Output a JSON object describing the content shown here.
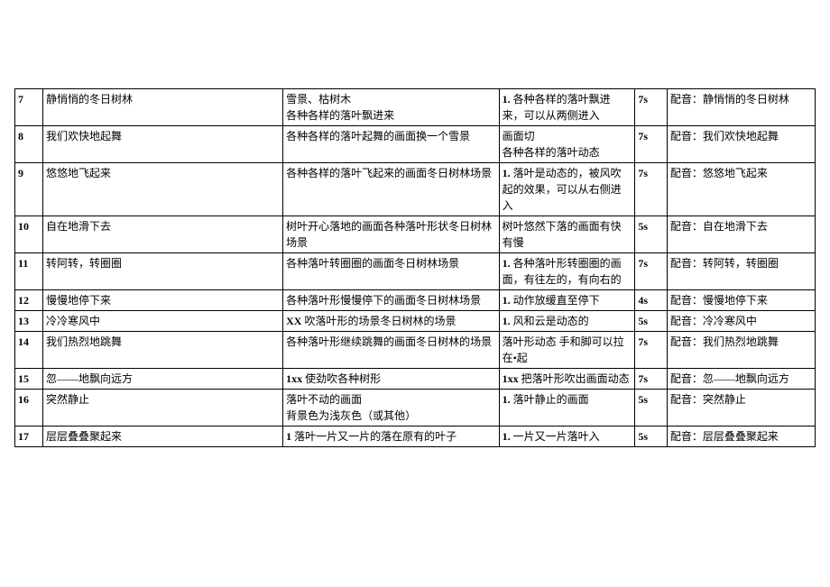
{
  "rows": [
    {
      "num": "7",
      "text": "静悄悄的冬日树林",
      "scene": "雪景、枯树木\n各种各样的落叶飘进来",
      "action_prefix": "1.",
      "action": " 各种各样的落叶飘进来，可以从两侧进入",
      "time": "7s",
      "audio": "配音：静悄悄的冬日树林"
    },
    {
      "num": "8",
      "text": "我们欢快地起舞",
      "scene": "各种各样的落叶起舞的画面换一个雪景",
      "action_prefix": "",
      "action": "画面切\n各种各样的落叶动态",
      "time": "7s",
      "audio": "配音：我们欢快地起舞"
    },
    {
      "num": "9",
      "text": "悠悠地飞起来",
      "scene": "各种各样的落叶飞起来的画面冬日树林场景",
      "action_prefix": "1.",
      "action": " 落叶是动态的，被风吹起的效果，可以从右侧进入",
      "time": "7s",
      "audio": "配音：悠悠地飞起来"
    },
    {
      "num": "10",
      "text": "自在地滑下去",
      "scene": "树叶开心落地的画面各种落叶形状冬日树林场景",
      "action_prefix": "",
      "action": "树叶悠然下落的画面有快有慢",
      "time": "5s",
      "audio": "配音：自在地滑下去"
    },
    {
      "num": "11",
      "text": "转阿转，转圈圈",
      "scene": "各种落叶转圈圈的画面冬日树林场景",
      "action_prefix": "1.",
      "action": " 各种落叶形转圈圈的画面，有往左的，有向右的",
      "time": "7s",
      "audio": "配音：转阿转，转圈圈"
    },
    {
      "num": "12",
      "text": "慢慢地停下来",
      "scene": "各种落叶形慢慢停下的画面冬日树林场景",
      "action_prefix": "1.",
      "action": " 动作放缓直至停下",
      "time": "4s",
      "audio": "配音：慢慢地停下来"
    },
    {
      "num": "13",
      "text": "冷冷寒风中",
      "scene_prefix": "XX",
      "scene": " 吹落叶形的场景冬日树林的场景",
      "action_prefix": "1.",
      "action": " 风和云是动态的",
      "time": "5s",
      "audio": "配音：冷冷寒风中"
    },
    {
      "num": "14",
      "text": "我们热烈地跳舞",
      "scene": "各种落叶形继续跳舞的画面冬日树林的场景",
      "action_prefix": "",
      "action": "落叶形动态 手和脚可以拉在•起",
      "time": "7s",
      "audio": "配音：我们热烈地跳舞"
    },
    {
      "num": "15",
      "text": "忽——地飘向远方",
      "scene_prefix": "1xx",
      "scene": " 使劲吹各种树形",
      "action_prefix": "1xx",
      "action": " 把落叶形吹出画面动态",
      "time": "7s",
      "audio": "配音：忽——地飘向远方"
    },
    {
      "num": "16",
      "text": "突然静止",
      "scene": "落叶不动的画面\n背景色为浅灰色（或其他）",
      "action_prefix": "1.",
      "action": " 落叶静止的画面",
      "time": "5s",
      "audio": "配音：突然静止"
    },
    {
      "num": "17",
      "text": "层层叠叠聚起来",
      "scene_prefix": "1",
      "scene": " 落叶一片又一片的落在原有的叶子",
      "action_prefix": "1.",
      "action": " 一片又一片落叶入",
      "time": "5s",
      "audio": "配音：层层叠叠聚起来"
    }
  ]
}
